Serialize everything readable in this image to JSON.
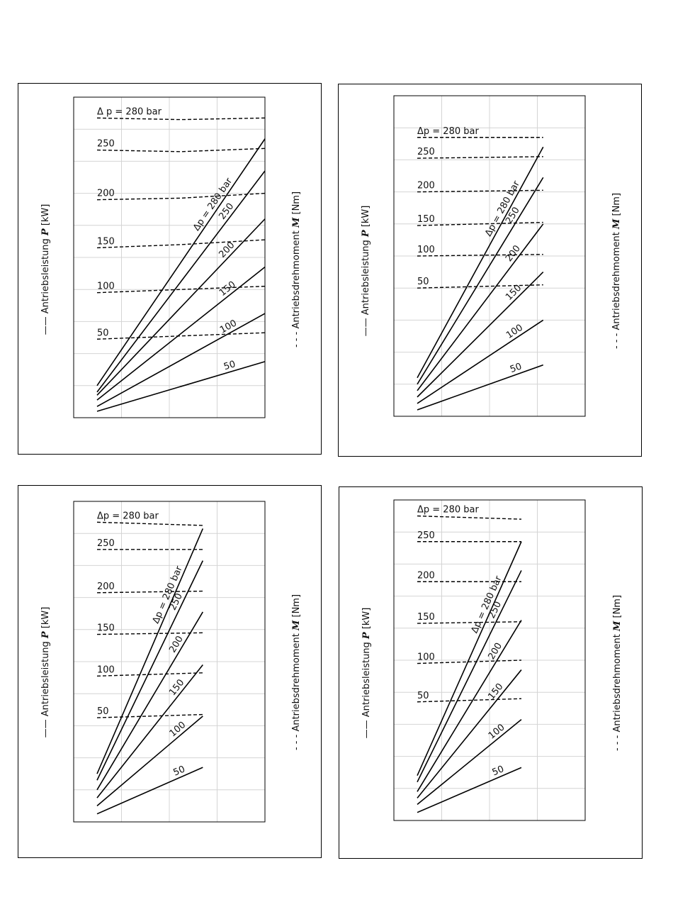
{
  "left_axis": {
    "line_symbol": "——",
    "text": "Antriebsleistung ",
    "symbol": "P",
    "unit": " [kW]"
  },
  "right_axis": {
    "line_symbol": "- - -",
    "text": "Antriebsdrehmoment ",
    "symbol": "M",
    "unit": " [Nm]"
  },
  "delta_p_symbol": "Δp",
  "chart_data": [
    {
      "type": "line",
      "panel": "top-left",
      "x_range": [
        0,
        1
      ],
      "y_range": [
        0,
        1
      ],
      "grid": true,
      "top_label": "Δ p = 280 bar",
      "solid_labels": [
        "Δp = 280 bar",
        "250",
        "200",
        "150",
        "100",
        "50"
      ],
      "dashed_labels": [
        "Δ p = 280 bar",
        "250",
        "200",
        "150",
        "100",
        "50"
      ],
      "power_series": [
        {
          "name": "280 bar",
          "x": [
            0,
            1
          ],
          "y": [
            0.1,
            0.87
          ]
        },
        {
          "name": "250",
          "x": [
            0,
            1
          ],
          "y": [
            0.08,
            0.77
          ]
        },
        {
          "name": "200",
          "x": [
            0,
            1
          ],
          "y": [
            0.07,
            0.62
          ]
        },
        {
          "name": "150",
          "x": [
            0,
            1
          ],
          "y": [
            0.055,
            0.47
          ]
        },
        {
          "name": "100",
          "x": [
            0,
            1
          ],
          "y": [
            0.035,
            0.325
          ]
        },
        {
          "name": "50",
          "x": [
            0,
            1
          ],
          "y": [
            0.02,
            0.175
          ]
        }
      ],
      "torque_series": [
        {
          "name": "280 bar",
          "x": [
            0,
            0.5,
            1
          ],
          "y": [
            0.935,
            0.93,
            0.935
          ]
        },
        {
          "name": "250",
          "x": [
            0,
            0.5,
            1
          ],
          "y": [
            0.835,
            0.83,
            0.84
          ]
        },
        {
          "name": "200",
          "x": [
            0,
            0.5,
            1
          ],
          "y": [
            0.68,
            0.685,
            0.7
          ]
        },
        {
          "name": "150",
          "x": [
            0,
            0.5,
            1
          ],
          "y": [
            0.53,
            0.54,
            0.555
          ]
        },
        {
          "name": "100",
          "x": [
            0,
            0.5,
            1
          ],
          "y": [
            0.39,
            0.4,
            0.41
          ]
        },
        {
          "name": "50",
          "x": [
            0,
            0.5,
            1
          ],
          "y": [
            0.245,
            0.255,
            0.265
          ]
        }
      ]
    },
    {
      "type": "line",
      "panel": "top-right",
      "x_range": [
        0,
        1
      ],
      "y_range": [
        0,
        1
      ],
      "grid": true,
      "top_label": "",
      "solid_labels": [
        "Δp = 280 bar",
        "250",
        "200",
        "150",
        "100",
        "50"
      ],
      "dashed_labels": [
        "Δp = 280 bar",
        "250",
        "200",
        "150",
        "100",
        "50"
      ],
      "power_series": [
        {
          "name": "280 bar",
          "x": [
            0,
            0.75
          ],
          "y": [
            0.12,
            0.84
          ]
        },
        {
          "name": "250",
          "x": [
            0,
            0.75
          ],
          "y": [
            0.1,
            0.745
          ]
        },
        {
          "name": "200",
          "x": [
            0,
            0.75
          ],
          "y": [
            0.08,
            0.6
          ]
        },
        {
          "name": "150",
          "x": [
            0,
            0.75
          ],
          "y": [
            0.06,
            0.45
          ]
        },
        {
          "name": "100",
          "x": [
            0,
            0.75
          ],
          "y": [
            0.04,
            0.3
          ]
        },
        {
          "name": "50",
          "x": [
            0,
            0.75
          ],
          "y": [
            0.02,
            0.16
          ]
        }
      ],
      "torque_series": [
        {
          "name": "280 bar",
          "x": [
            0,
            0.75
          ],
          "y": [
            0.87,
            0.87
          ]
        },
        {
          "name": "250",
          "x": [
            0,
            0.75
          ],
          "y": [
            0.805,
            0.81
          ]
        },
        {
          "name": "200",
          "x": [
            0,
            0.75
          ],
          "y": [
            0.7,
            0.705
          ]
        },
        {
          "name": "150",
          "x": [
            0,
            0.75
          ],
          "y": [
            0.595,
            0.605
          ]
        },
        {
          "name": "100",
          "x": [
            0,
            0.75
          ],
          "y": [
            0.5,
            0.505
          ]
        },
        {
          "name": "50",
          "x": [
            0,
            0.75
          ],
          "y": [
            0.4,
            0.41
          ]
        }
      ]
    },
    {
      "type": "line",
      "panel": "bottom-left",
      "x_range": [
        0,
        1
      ],
      "y_range": [
        0,
        1
      ],
      "grid": true,
      "top_label": "",
      "solid_labels": [
        "Δp = 280 bar",
        "250",
        "200",
        "150",
        "100",
        "50"
      ],
      "dashed_labels": [
        "Δp = 280 bar",
        "250",
        "200",
        "150",
        "100",
        "50"
      ],
      "power_series": [
        {
          "name": "280 bar",
          "x": [
            0,
            0.63
          ],
          "y": [
            0.15,
            0.915
          ]
        },
        {
          "name": "250",
          "x": [
            0,
            0.63
          ],
          "y": [
            0.13,
            0.815
          ]
        },
        {
          "name": "200",
          "x": [
            0,
            0.63
          ],
          "y": [
            0.1,
            0.655
          ]
        },
        {
          "name": "150",
          "x": [
            0,
            0.63
          ],
          "y": [
            0.075,
            0.49
          ]
        },
        {
          "name": "100",
          "x": [
            0,
            0.63
          ],
          "y": [
            0.05,
            0.33
          ]
        },
        {
          "name": "50",
          "x": [
            0,
            0.63
          ],
          "y": [
            0.025,
            0.17
          ]
        }
      ],
      "torque_series": [
        {
          "name": "280 bar",
          "x": [
            0,
            0.63
          ],
          "y": [
            0.935,
            0.925
          ]
        },
        {
          "name": "250",
          "x": [
            0,
            0.63
          ],
          "y": [
            0.85,
            0.85
          ]
        },
        {
          "name": "200",
          "x": [
            0,
            0.63
          ],
          "y": [
            0.715,
            0.72
          ]
        },
        {
          "name": "150",
          "x": [
            0,
            0.63
          ],
          "y": [
            0.585,
            0.59
          ]
        },
        {
          "name": "100",
          "x": [
            0,
            0.63
          ],
          "y": [
            0.455,
            0.465
          ]
        },
        {
          "name": "50",
          "x": [
            0,
            0.63
          ],
          "y": [
            0.325,
            0.335
          ]
        }
      ]
    },
    {
      "type": "line",
      "panel": "bottom-right",
      "x_range": [
        0,
        1
      ],
      "y_range": [
        0,
        1
      ],
      "grid": true,
      "top_label": "Δp = 280 bar",
      "solid_labels": [
        "Δp = 280 bar",
        "250",
        "200",
        "150",
        "100",
        "50"
      ],
      "dashed_labels": [
        "Δp = 280 bar",
        "250",
        "200",
        "150",
        "100",
        "50"
      ],
      "power_series": [
        {
          "name": "280 bar",
          "x": [
            0,
            0.62
          ],
          "y": [
            0.14,
            0.87
          ]
        },
        {
          "name": "250",
          "x": [
            0,
            0.62
          ],
          "y": [
            0.12,
            0.78
          ]
        },
        {
          "name": "200",
          "x": [
            0,
            0.62
          ],
          "y": [
            0.09,
            0.625
          ]
        },
        {
          "name": "150",
          "x": [
            0,
            0.62
          ],
          "y": [
            0.07,
            0.47
          ]
        },
        {
          "name": "100",
          "x": [
            0,
            0.62
          ],
          "y": [
            0.05,
            0.315
          ]
        },
        {
          "name": "50",
          "x": [
            0,
            0.62
          ],
          "y": [
            0.025,
            0.165
          ]
        }
      ],
      "torque_series": [
        {
          "name": "280 bar",
          "x": [
            0,
            0.62
          ],
          "y": [
            0.95,
            0.94
          ]
        },
        {
          "name": "250",
          "x": [
            0,
            0.62
          ],
          "y": [
            0.87,
            0.87
          ]
        },
        {
          "name": "200",
          "x": [
            0,
            0.62
          ],
          "y": [
            0.745,
            0.745
          ]
        },
        {
          "name": "150",
          "x": [
            0,
            0.62
          ],
          "y": [
            0.615,
            0.62
          ]
        },
        {
          "name": "100",
          "x": [
            0,
            0.62
          ],
          "y": [
            0.49,
            0.5
          ]
        },
        {
          "name": "50",
          "x": [
            0,
            0.62
          ],
          "y": [
            0.37,
            0.38
          ]
        }
      ]
    }
  ]
}
